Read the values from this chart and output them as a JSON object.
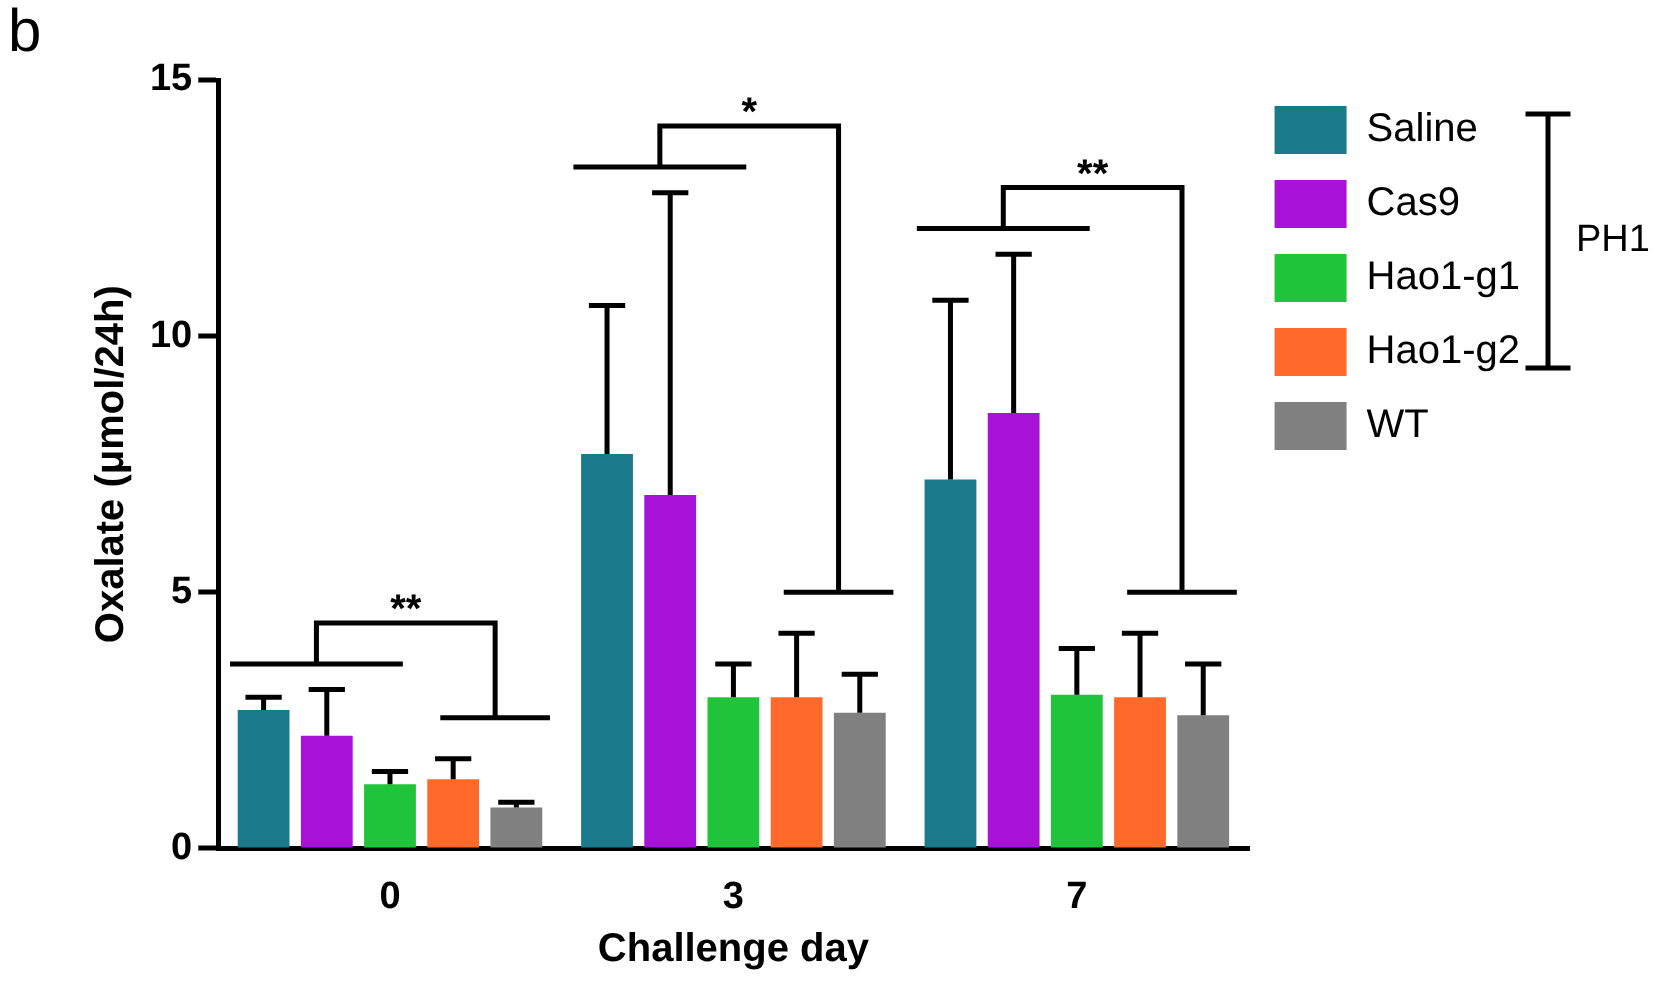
{
  "chart_data": {
    "type": "bar",
    "xlabel": "Challenge day",
    "ylabel": "Oxalate (μmol/24h)",
    "categories": [
      "0",
      "3",
      "7"
    ],
    "series": [
      {
        "name": "Saline",
        "color": "#1a7a8c",
        "values": [
          2.7,
          7.7,
          7.2
        ],
        "errors": [
          [
            2.7,
            2.95
          ],
          [
            7.7,
            10.6
          ],
          [
            7.2,
            10.7
          ]
        ]
      },
      {
        "name": "Cas9",
        "color": "#a812d8",
        "values": [
          2.2,
          6.9,
          8.5
        ],
        "errors": [
          [
            2.2,
            3.1
          ],
          [
            6.9,
            12.8
          ],
          [
            8.5,
            11.6
          ]
        ]
      },
      {
        "name": "Hao1-g1",
        "color": "#1fc43a",
        "values": [
          1.25,
          2.95,
          3.0
        ],
        "errors": [
          [
            1.25,
            1.5
          ],
          [
            2.95,
            3.6
          ],
          [
            3.0,
            3.9
          ]
        ]
      },
      {
        "name": "Hao1-g2",
        "color": "#ff6a2a",
        "values": [
          1.35,
          2.95,
          2.95
        ],
        "errors": [
          [
            1.35,
            1.75
          ],
          [
            2.95,
            4.2
          ],
          [
            2.95,
            4.2
          ]
        ]
      },
      {
        "name": "WT",
        "color": "#808080",
        "values": [
          0.8,
          2.65,
          2.6
        ],
        "errors": [
          [
            0.8,
            0.9
          ],
          [
            2.65,
            3.4
          ],
          [
            2.6,
            3.6
          ]
        ]
      }
    ],
    "ylim": [
      0,
      15
    ],
    "yticks": [
      0,
      5,
      10,
      15
    ],
    "grid": false,
    "legend": "right",
    "annotations": [
      "b",
      "**",
      "*",
      "**",
      "PH1"
    ]
  }
}
